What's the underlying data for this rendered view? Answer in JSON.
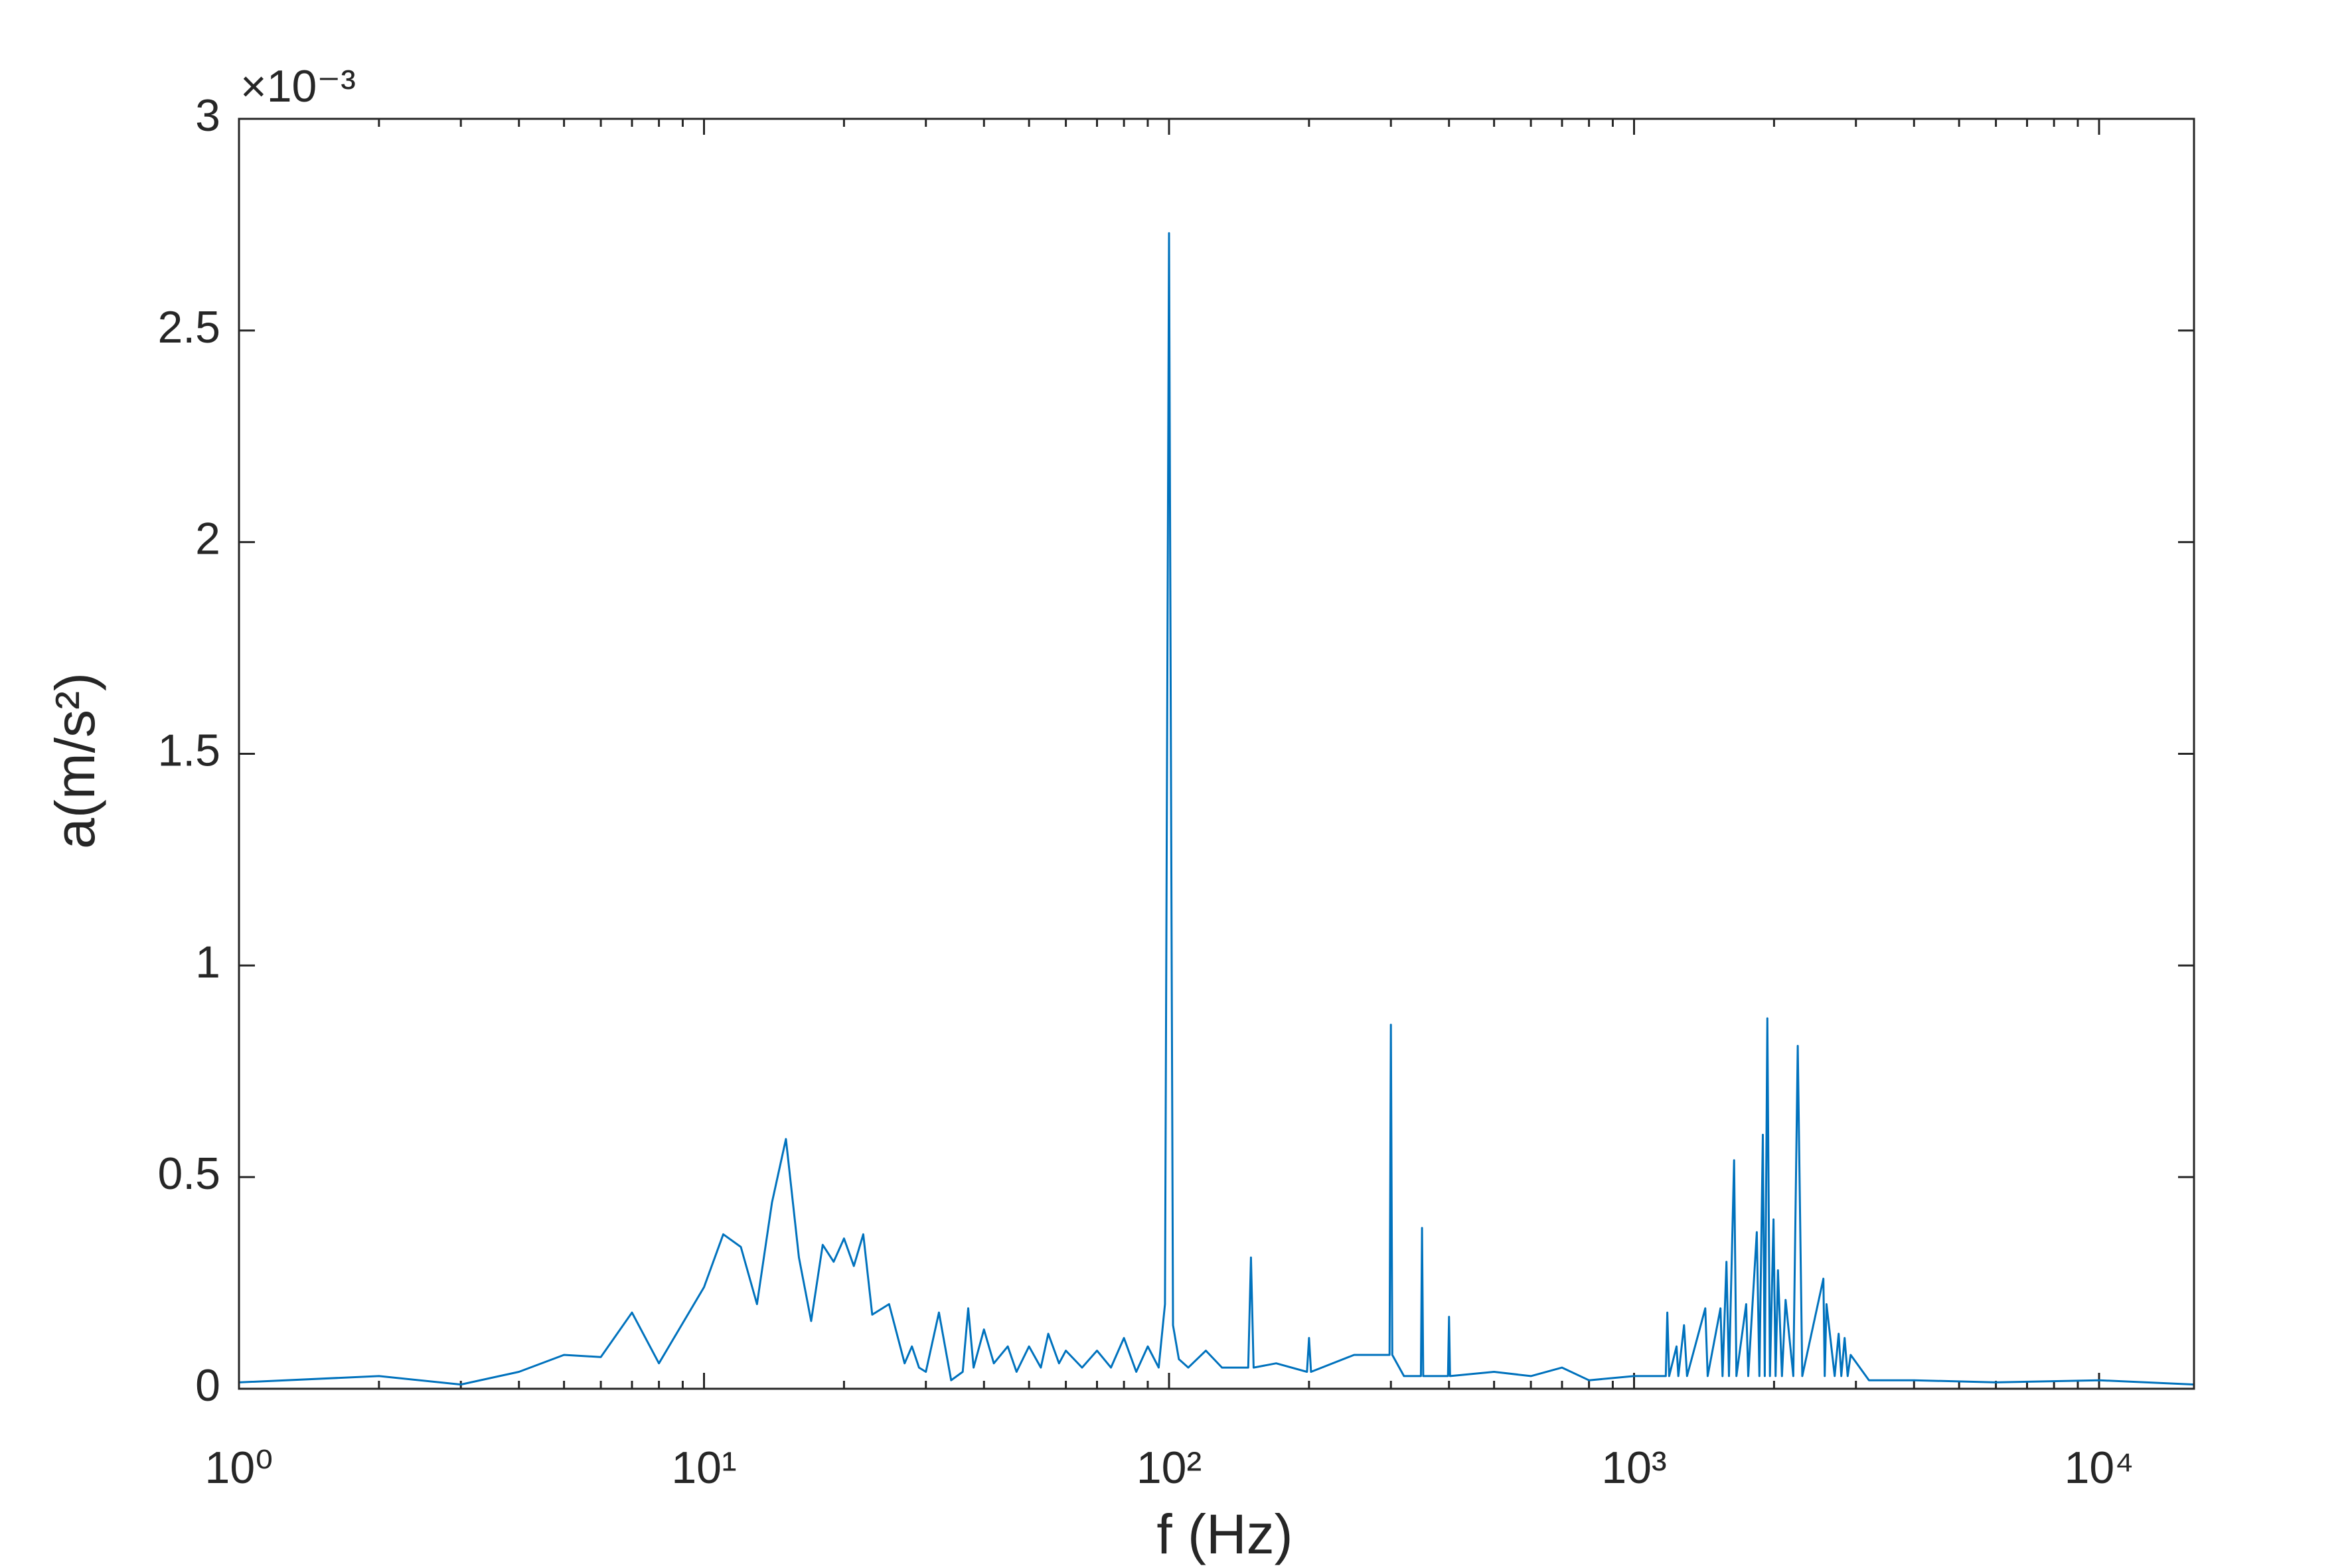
{
  "chart_data": {
    "type": "line",
    "xlabel": "f (Hz)",
    "ylabel": "a(m/s²)",
    "y_exponent_label": "×10⁻³",
    "xscale": "log",
    "xlim": [
      1,
      16000
    ],
    "xticks": [
      {
        "value": 1,
        "label": "10⁰"
      },
      {
        "value": 10,
        "label": "10¹"
      },
      {
        "value": 100,
        "label": "10²"
      },
      {
        "value": 1000,
        "label": "10³"
      },
      {
        "value": 10000,
        "label": "10⁴"
      }
    ],
    "ylim": [
      0,
      3
    ],
    "yticks": [
      0,
      0.5,
      1,
      1.5,
      2,
      2.5,
      3
    ],
    "color": "#0072bd",
    "x": [
      1,
      2,
      3,
      4,
      5,
      6,
      7,
      8,
      10,
      11,
      12,
      13,
      14,
      15,
      16,
      17,
      18,
      19,
      20,
      21,
      22,
      23,
      25,
      27,
      28,
      29,
      30,
      32,
      34,
      36,
      37,
      38,
      40,
      42,
      45,
      47,
      50,
      53,
      55,
      58,
      60,
      65,
      70,
      75,
      80,
      85,
      90,
      95,
      98,
      100,
      102,
      105,
      110,
      120,
      130,
      148,
      150,
      152,
      170,
      198,
      200,
      202,
      250,
      298,
      300,
      302,
      320,
      348,
      350,
      352,
      398,
      400,
      402,
      500,
      600,
      700,
      800,
      1000,
      1170,
      1179,
      1190,
      1234,
      1245,
      1281,
      1300,
      1423,
      1440,
      1534,
      1550,
      1580,
      1600,
      1641,
      1660,
      1742,
      1760,
      1836,
      1860,
      1892,
      1910,
      1935,
      1960,
      1995,
      2015,
      2039,
      2080,
      2118,
      2200,
      2249,
      2300,
      2553,
      2570,
      2593,
      2700,
      2754,
      2790,
      2837,
      2880,
      2923,
      3200,
      4000,
      6000,
      10000,
      16000
    ],
    "values": [
      0.015,
      0.03,
      0.01,
      0.04,
      0.08,
      0.075,
      0.18,
      0.06,
      0.24,
      0.365,
      0.335,
      0.2,
      0.44,
      0.59,
      0.31,
      0.16,
      0.34,
      0.3,
      0.355,
      0.29,
      0.365,
      0.175,
      0.2,
      0.06,
      0.1,
      0.05,
      0.04,
      0.18,
      0.02,
      0.04,
      0.19,
      0.05,
      0.14,
      0.06,
      0.1,
      0.04,
      0.1,
      0.05,
      0.13,
      0.06,
      0.09,
      0.05,
      0.09,
      0.05,
      0.12,
      0.04,
      0.1,
      0.05,
      0.2,
      2.73,
      0.15,
      0.07,
      0.05,
      0.09,
      0.05,
      0.05,
      0.31,
      0.05,
      0.06,
      0.04,
      0.12,
      0.04,
      0.08,
      0.08,
      0.86,
      0.08,
      0.03,
      0.03,
      0.38,
      0.03,
      0.03,
      0.17,
      0.03,
      0.04,
      0.03,
      0.05,
      0.02,
      0.03,
      0.03,
      0.18,
      0.03,
      0.1,
      0.03,
      0.15,
      0.03,
      0.19,
      0.03,
      0.19,
      0.03,
      0.3,
      0.03,
      0.54,
      0.03,
      0.2,
      0.03,
      0.37,
      0.03,
      0.6,
      0.03,
      0.875,
      0.03,
      0.4,
      0.03,
      0.28,
      0.03,
      0.21,
      0.03,
      0.81,
      0.03,
      0.26,
      0.03,
      0.2,
      0.03,
      0.13,
      0.03,
      0.12,
      0.03,
      0.08,
      0.02,
      0.02,
      0.015,
      0.02,
      0.01
    ]
  }
}
